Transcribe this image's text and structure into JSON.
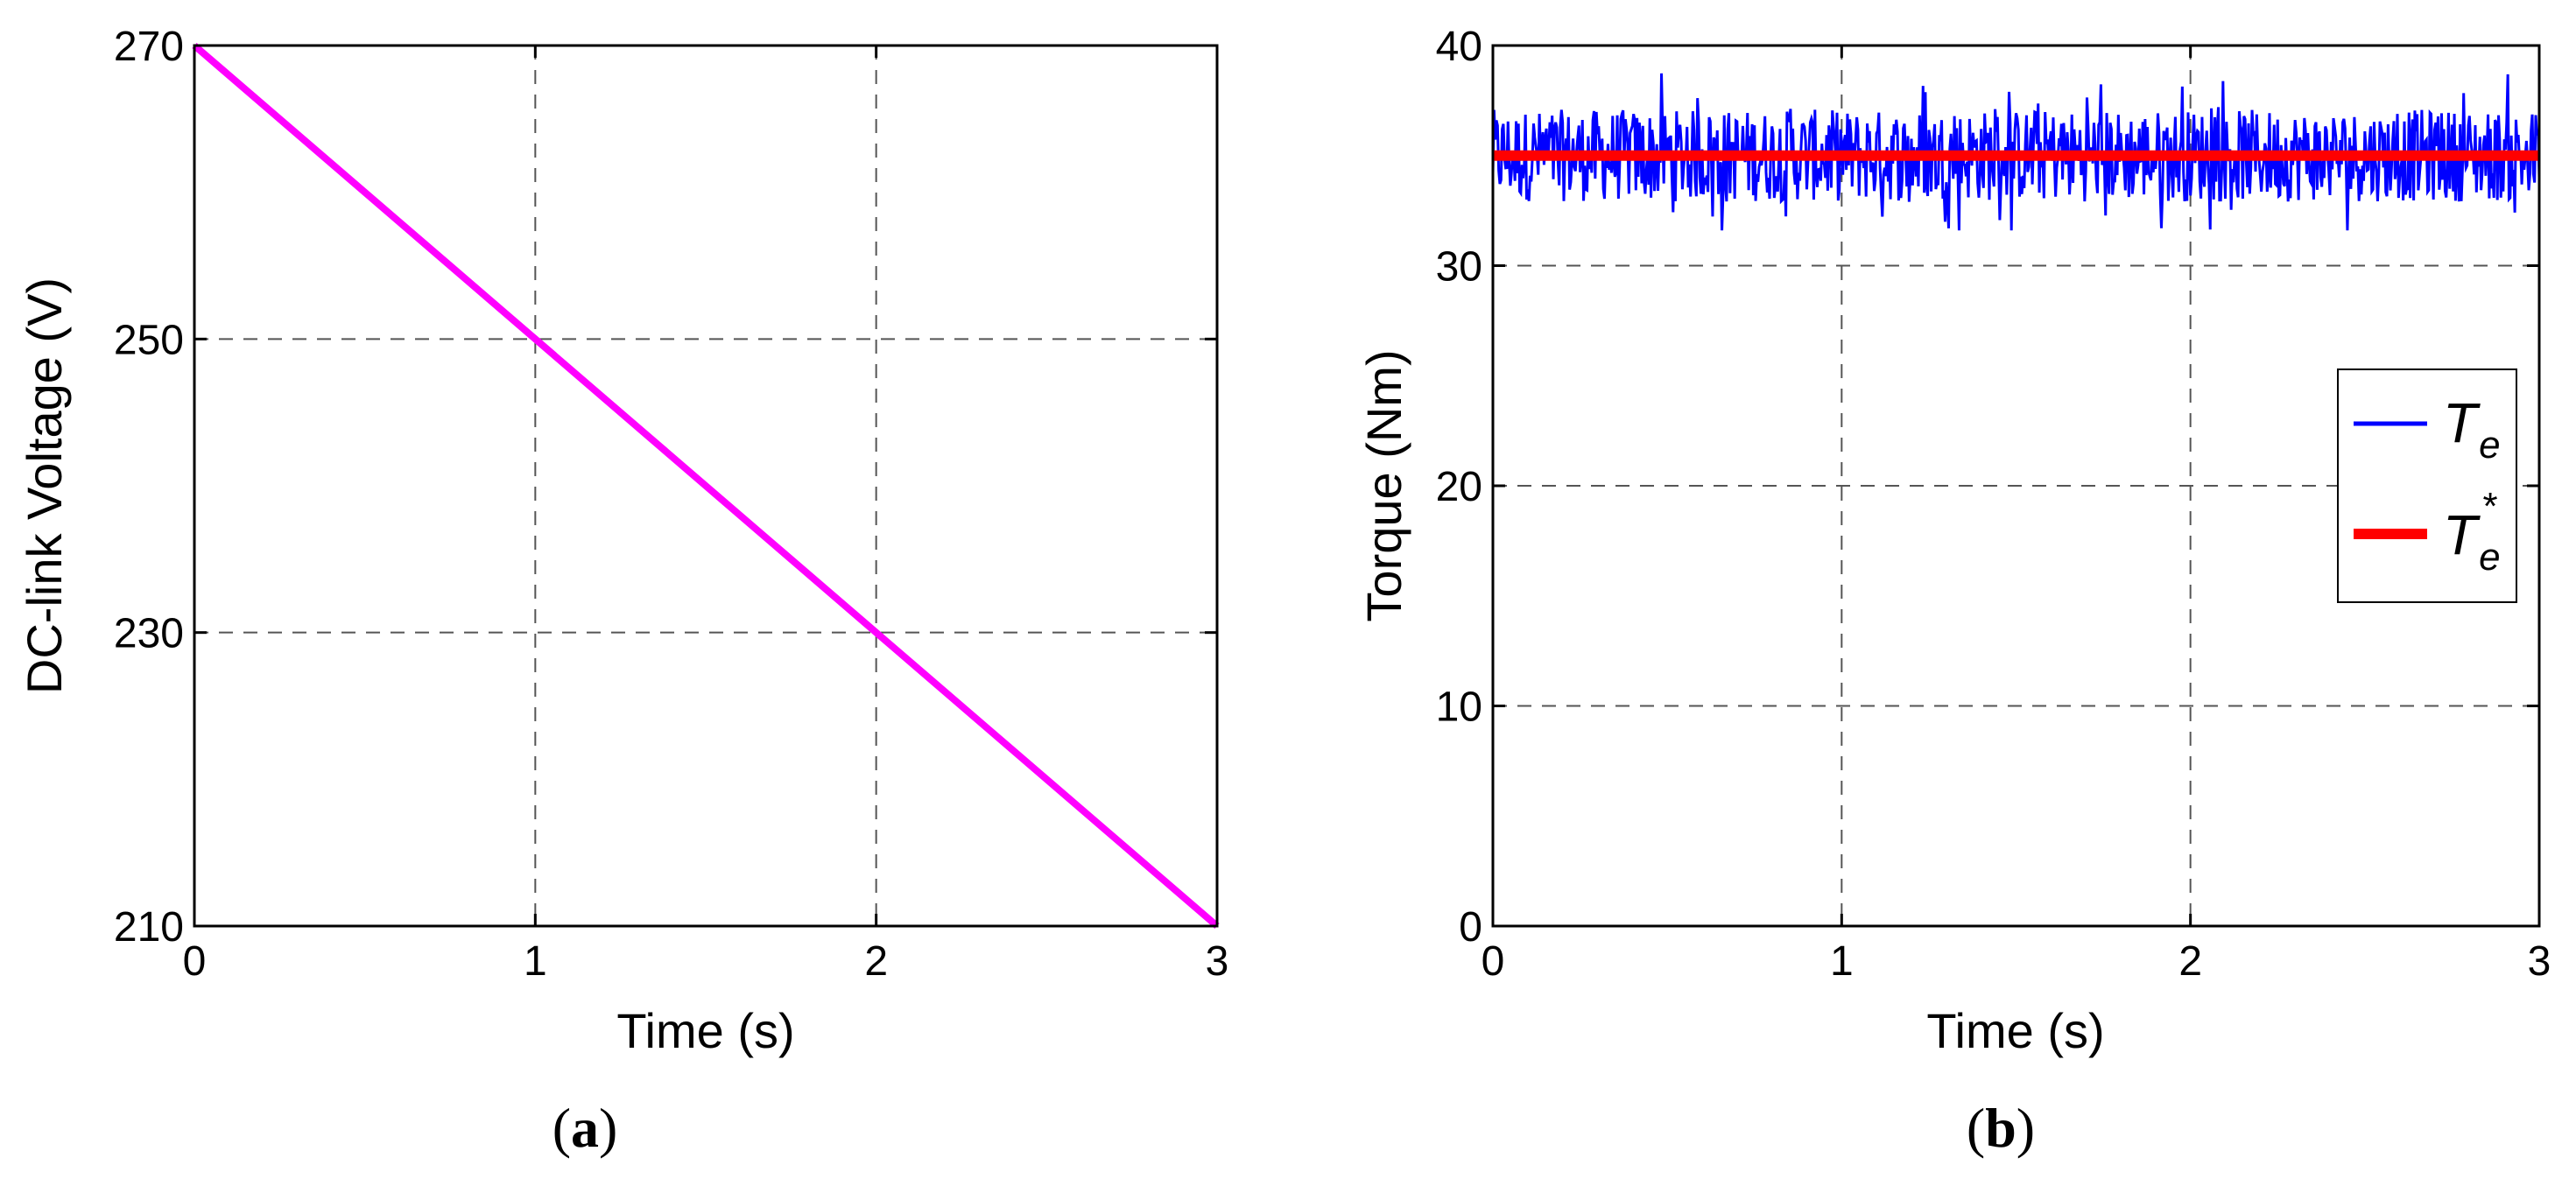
{
  "chart_data": [
    {
      "type": "line",
      "panel_label": "a",
      "xlabel": "Time (s)",
      "ylabel": "DC-link Voltage (V)",
      "xlim": [
        0,
        3
      ],
      "ylim": [
        210,
        270
      ],
      "x_ticks": [
        "0",
        "1",
        "2",
        "3"
      ],
      "y_ticks": [
        "210",
        "230",
        "250",
        "270"
      ],
      "grid": true,
      "series": [
        {
          "color": "#ff00ff",
          "x": [
            0,
            1,
            2,
            3
          ],
          "y": [
            270,
            250,
            230,
            210
          ]
        }
      ]
    },
    {
      "type": "line",
      "panel_label": "b",
      "xlabel": "Time (s)",
      "ylabel": "Torque (Nm)",
      "xlim": [
        0,
        3
      ],
      "ylim": [
        0,
        40
      ],
      "x_ticks": [
        "0",
        "1",
        "2",
        "3"
      ],
      "y_ticks": [
        "0",
        "10",
        "20",
        "30",
        "40"
      ],
      "grid": true,
      "legend_position": "right",
      "series": [
        {
          "name": "T_e",
          "legend_main": "T",
          "legend_sub": "e",
          "legend_sup": "",
          "color": "#0000ff",
          "mean": 35,
          "min": 31.6,
          "max": 39.2,
          "note_band": "noisy"
        },
        {
          "name": "T_e^*",
          "legend_main": "T",
          "legend_sub": "e",
          "legend_sup": "*",
          "color": "#ff0000",
          "x": [
            0,
            3
          ],
          "y": [
            35,
            35
          ]
        }
      ]
    }
  ]
}
